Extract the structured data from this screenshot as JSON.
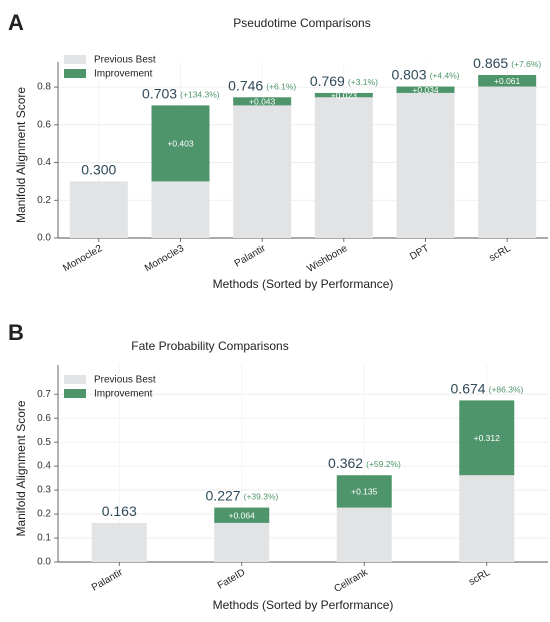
{
  "colors": {
    "previous_best": "#e2e3e5",
    "improvement": "#4f956b",
    "axis_text": "#222222",
    "value_text": "#2f4a5a",
    "percent_text": "#4f956b"
  },
  "chart_data": [
    {
      "type": "bar",
      "panel_letter": "A",
      "title": "Pseudotime Comparisons",
      "xlabel": "Methods (Sorted by Performance)",
      "ylabel": "Manifold Alignment Score",
      "ylim": [
        0,
        0.88
      ],
      "yticks": [
        0.0,
        0.2,
        0.4,
        0.6,
        0.8
      ],
      "ytick_labels": [
        "0.0",
        "0.2",
        "0.4",
        "0.6",
        "0.8"
      ],
      "grid": true,
      "legend_position": "top-left",
      "legend": [
        "Previous Best",
        "Improvement"
      ],
      "categories": [
        "Monocle2",
        "Monocle3",
        "Palantir",
        "Wishbone",
        "DPT",
        "scRL"
      ],
      "series": [
        {
          "name": "Previous Best",
          "values": [
            0.3,
            0.3,
            0.703,
            0.746,
            0.769,
            0.803
          ]
        },
        {
          "name": "Improvement",
          "values": [
            0,
            0.403,
            0.043,
            0.023,
            0.034,
            0.061
          ]
        }
      ],
      "totals": [
        "0.300",
        "0.703",
        "0.746",
        "0.769",
        "0.803",
        "0.865"
      ],
      "improvement_labels": [
        "",
        "+0.403",
        "+0.043",
        "+0.023",
        "+0.034",
        "+0.061"
      ],
      "percent_labels": [
        "",
        "(+134.3%)",
        "(+6.1%)",
        "(+3.1%)",
        "(+4.4%)",
        "(+7.6%)"
      ]
    },
    {
      "type": "bar",
      "panel_letter": "B",
      "title": "Fate Probability Comparisons",
      "xlabel": "Methods (Sorted by Performance)",
      "ylabel": "Manifold Alignment Score",
      "ylim": [
        0,
        0.78
      ],
      "yticks": [
        0.0,
        0.1,
        0.2,
        0.3,
        0.4,
        0.5,
        0.6,
        0.7
      ],
      "ytick_labels": [
        "0.0",
        "0.1",
        "0.2",
        "0.3",
        "0.4",
        "0.5",
        "0.6",
        "0.7"
      ],
      "grid": true,
      "legend_position": "top-left",
      "legend": [
        "Previous Best",
        "Improvement"
      ],
      "categories": [
        "Palantir",
        "FateID",
        "Cellrank",
        "scRL"
      ],
      "series": [
        {
          "name": "Previous Best",
          "values": [
            0.163,
            0.163,
            0.227,
            0.362
          ]
        },
        {
          "name": "Improvement",
          "values": [
            0,
            0.064,
            0.135,
            0.312
          ]
        }
      ],
      "totals": [
        "0.163",
        "0.227",
        "0.362",
        "0.674"
      ],
      "improvement_labels": [
        "",
        "+0.064",
        "+0.135",
        "+0.312"
      ],
      "percent_labels": [
        "",
        "(+39.3%)",
        "(+59.2%)",
        "(+86.3%)"
      ]
    }
  ]
}
